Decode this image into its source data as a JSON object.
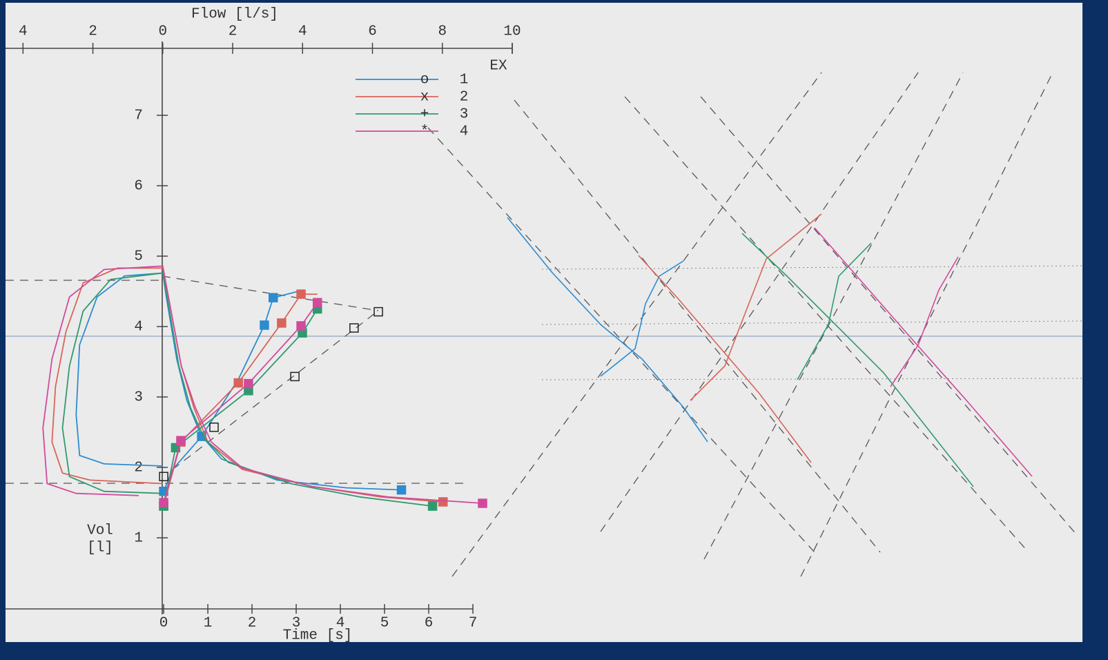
{
  "chart_data": {
    "type": "line",
    "x_label": "Flow [l/s]",
    "x_direction_label": "EX",
    "y_label": [
      "Vol",
      "[l]"
    ],
    "x2_label": "Time [s]",
    "xlim": [
      -4.5,
      10
    ],
    "xticks": [
      {
        "value": -4,
        "label": "4"
      },
      {
        "value": -2,
        "label": "2"
      },
      0,
      2,
      4,
      6,
      8,
      10
    ],
    "ylim": [
      0,
      8
    ],
    "yticks": [
      1,
      2,
      3,
      4,
      5,
      6,
      7
    ],
    "x2lim": [
      -3.58,
      7
    ],
    "x2ticks": [
      0,
      1,
      2,
      3,
      4,
      5,
      6,
      7
    ],
    "series": [
      {
        "name": "1",
        "color": "#2b8cd0",
        "flow": [
          0,
          -1.68,
          -2.38,
          -2.48,
          -2.38,
          -1.88,
          -1.09,
          0,
          0.1,
          0.4,
          0.69,
          1.09,
          1.68,
          3.27,
          5.25,
          6.83
        ],
        "volume": [
          2.02,
          2.05,
          2.17,
          2.75,
          3.74,
          4.42,
          4.72,
          4.76,
          4.42,
          3.54,
          2.95,
          2.46,
          2.12,
          1.82,
          1.71,
          1.68
        ],
        "time": [
          0,
          0.2,
          0.86,
          1.69,
          2.28,
          2.48,
          3.17
        ],
        "time_volume": [
          1.66,
          1.97,
          2.44,
          3.25,
          4.02,
          4.41,
          4.52
        ],
        "marker_time": [
          0,
          0.86,
          2.28,
          2.48
        ],
        "marker_volume": [
          1.66,
          2.44,
          4.02,
          4.41
        ]
      },
      {
        "name": "2",
        "color": "#d9645a",
        "flow": [
          0,
          -2.08,
          -2.87,
          -3.17,
          -3.07,
          -2.77,
          -2.28,
          -1.29,
          0,
          0.2,
          0.53,
          0.89,
          1.29,
          2.28,
          4.26,
          6.24,
          8.02
        ],
        "volume": [
          1.77,
          1.82,
          1.92,
          2.36,
          3.15,
          3.93,
          4.62,
          4.83,
          4.83,
          4.32,
          3.44,
          2.85,
          2.36,
          1.97,
          1.73,
          1.58,
          1.51
        ],
        "time": [
          0,
          0.39,
          1.69,
          2.67,
          3.11,
          3.48
        ],
        "time_volume": [
          1.46,
          2.36,
          3.2,
          4.05,
          4.46,
          4.46
        ],
        "marker_time": [
          0,
          0.39,
          1.69,
          2.67,
          3.11
        ],
        "marker_volume": [
          1.46,
          2.36,
          3.2,
          4.05,
          4.46
        ]
      },
      {
        "name": "3",
        "color": "#2f9a6e",
        "flow": [
          0,
          -1.68,
          -2.67,
          -2.87,
          -2.67,
          -2.28,
          -1.49,
          0,
          0.16,
          0.46,
          0.79,
          1.19,
          1.88,
          3.66,
          5.64,
          7.72
        ],
        "volume": [
          1.63,
          1.66,
          1.87,
          2.56,
          3.44,
          4.22,
          4.67,
          4.76,
          4.32,
          3.44,
          2.85,
          2.41,
          2.07,
          1.77,
          1.58,
          1.45
        ],
        "time": [
          0,
          0.27,
          1.92,
          3.14,
          3.48
        ],
        "time_volume": [
          1.45,
          2.28,
          3.09,
          3.91,
          4.25
        ],
        "marker_time": [
          0,
          0.27,
          1.92,
          3.14,
          3.48
        ],
        "marker_volume": [
          1.45,
          2.28,
          3.09,
          3.91,
          4.25
        ]
      },
      {
        "name": "4",
        "color": "#d24a9c",
        "flow": [
          -0.69,
          -2.48,
          -3.31,
          -3.43,
          -3.17,
          -2.67,
          -1.68,
          0,
          0.2,
          0.53,
          0.93,
          1.39,
          2.28,
          4.26,
          6.44,
          9.15
        ],
        "volume": [
          1.6,
          1.63,
          1.77,
          2.56,
          3.54,
          4.42,
          4.81,
          4.86,
          4.32,
          3.44,
          2.85,
          2.36,
          1.99,
          1.73,
          1.58,
          1.49
        ],
        "time": [
          0,
          0.39,
          1.92,
          3.11,
          3.48
        ],
        "time_volume": [
          1.5,
          2.38,
          3.19,
          4.01,
          4.34
        ],
        "marker_time": [
          0,
          0.39,
          1.92,
          3.11,
          3.48
        ],
        "marker_volume": [
          1.5,
          2.38,
          3.19,
          4.01,
          4.34
        ]
      }
    ],
    "reference": {
      "time": [
        0,
        1.14,
        2.97,
        4.31,
        4.86
      ],
      "volume": [
        1.87,
        2.57,
        3.29,
        3.98,
        4.21
      ]
    }
  }
}
